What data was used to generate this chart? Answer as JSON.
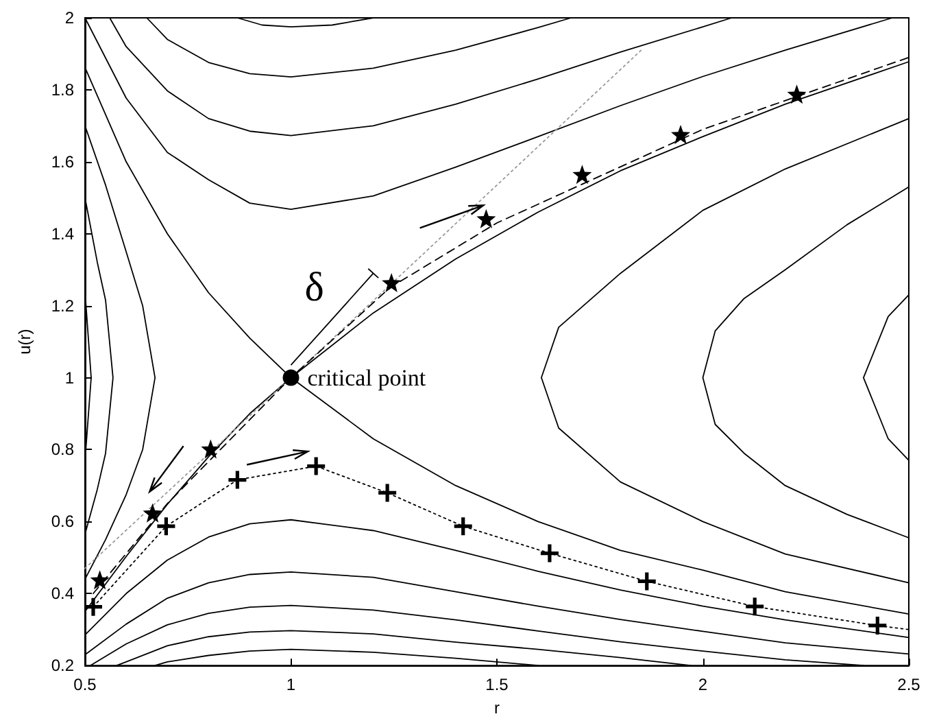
{
  "chart_data": {
    "type": "line",
    "xlabel": "r",
    "ylabel": "u(r)",
    "xlim": [
      0.5,
      2.5
    ],
    "ylim": [
      0.2,
      2
    ],
    "xticks": [
      0.5,
      1,
      1.5,
      2,
      2.5
    ],
    "yticks": [
      0.2,
      0.4,
      0.6,
      0.8,
      1,
      1.2,
      1.4,
      1.6,
      1.8,
      2
    ],
    "grid": false,
    "annotations": [
      {
        "text": "critical point",
        "x": 1,
        "y": 1
      },
      "δ"
    ],
    "series": [
      {
        "color": "#000000",
        "marker": "none",
        "line_style": "solid",
        "x": [
          0.5,
          0.6,
          0.7,
          0.8,
          0.9,
          1,
          1.2,
          1.4,
          1.6,
          1.8,
          2,
          2.2,
          2.5
        ],
        "values": [
          0.35,
          0.503,
          0.648,
          0.78,
          0.9,
          1,
          1.18,
          1.33,
          1.46,
          1.575,
          1.67,
          1.76,
          1.878
        ]
      },
      {
        "color": "#000000",
        "marker": "none",
        "line_style": "solid",
        "x": [
          0.5,
          0.6,
          0.7,
          0.8,
          0.9,
          1,
          1.2,
          1.4,
          1.6,
          1.8,
          2,
          2.2,
          2.5
        ],
        "values": [
          1.862,
          1.6,
          1.4,
          1.236,
          1.11,
          1,
          0.83,
          0.7,
          0.6,
          0.52,
          0.465,
          0.405,
          0.343
        ]
      },
      {
        "color": "#000000",
        "marker": "none",
        "line_style": "solid",
        "x": [
          0.87,
          0.93,
          1,
          1.1,
          1.2
        ],
        "values": [
          2,
          1.98,
          1.975,
          1.98,
          2
        ]
      },
      {
        "color": "#000000",
        "marker": "none",
        "line_style": "solid",
        "x": [
          0.65,
          0.7,
          0.8,
          0.9,
          1,
          1.2,
          1.4,
          1.6,
          1.68
        ],
        "values": [
          2,
          1.94,
          1.876,
          1.845,
          1.836,
          1.86,
          1.91,
          1.973,
          2
        ]
      },
      {
        "color": "#000000",
        "marker": "none",
        "line_style": "solid",
        "x": [
          0.56,
          0.6,
          0.7,
          0.8,
          0.9,
          1,
          1.2,
          1.4,
          1.6,
          1.8,
          2,
          2.07
        ],
        "values": [
          2,
          1.92,
          1.797,
          1.72,
          1.685,
          1.673,
          1.7,
          1.76,
          1.83,
          1.905,
          1.975,
          2
        ]
      },
      {
        "color": "#000000",
        "marker": "none",
        "line_style": "solid",
        "x": [
          0.5,
          0.6,
          0.7,
          0.8,
          0.9,
          1,
          1.2,
          1.4,
          1.6,
          1.8,
          2,
          2.2,
          2.46
        ],
        "values": [
          2,
          1.777,
          1.626,
          1.55,
          1.485,
          1.468,
          1.505,
          1.585,
          1.67,
          1.756,
          1.837,
          1.91,
          2
        ]
      },
      {
        "color": "#000000",
        "marker": "none",
        "line_style": "solid",
        "x": [
          0.5,
          0.55,
          0.6,
          0.64,
          0.67,
          0.64,
          0.6,
          0.55,
          0.5
        ],
        "values": [
          1.7,
          1.535,
          1.35,
          1.2,
          1,
          0.8,
          0.675,
          0.55,
          0.44
        ]
      },
      {
        "color": "#000000",
        "marker": "none",
        "line_style": "solid",
        "x": [
          0.5,
          0.53,
          0.55,
          0.568,
          0.55,
          0.53,
          0.5
        ],
        "values": [
          1.5,
          1.32,
          1.215,
          1,
          0.79,
          0.69,
          0.565
        ]
      },
      {
        "color": "#000000",
        "marker": "none",
        "line_style": "solid",
        "x": [
          0.5,
          0.515,
          0.5
        ],
        "values": [
          1.24,
          1,
          0.77
        ]
      },
      {
        "color": "#000000",
        "marker": "none",
        "line_style": "solid",
        "x": [
          2.5,
          2.2,
          2,
          1.8,
          1.65,
          1.608,
          1.65,
          1.8,
          2,
          2.2,
          2.5
        ],
        "values": [
          1.72,
          1.58,
          1.465,
          1.29,
          1.14,
          1,
          0.86,
          0.71,
          0.6,
          0.51,
          0.43
        ]
      },
      {
        "color": "#000000",
        "marker": "none",
        "line_style": "solid",
        "x": [
          2.5,
          2.35,
          2.2,
          2.1,
          2.03,
          2,
          2.03,
          2.1,
          2.2,
          2.35,
          2.5
        ],
        "values": [
          1.53,
          1.425,
          1.3,
          1.22,
          1.13,
          1,
          0.87,
          0.79,
          0.7,
          0.62,
          0.555
        ]
      },
      {
        "color": "#000000",
        "marker": "none",
        "line_style": "solid",
        "x": [
          2.5,
          2.45,
          2.39,
          2.45,
          2.5
        ],
        "values": [
          1.23,
          1.17,
          1,
          0.83,
          0.77
        ]
      },
      {
        "color": "#000000",
        "marker": "none",
        "line_style": "solid",
        "x": [
          0.5,
          0.6,
          0.7,
          0.8,
          0.9,
          1,
          1.2,
          1.4,
          1.6,
          1.8,
          2,
          2.2,
          2.5
        ],
        "values": [
          0.285,
          0.4,
          0.493,
          0.557,
          0.594,
          0.605,
          0.575,
          0.52,
          0.462,
          0.41,
          0.365,
          0.327,
          0.278
        ]
      },
      {
        "color": "#000000",
        "marker": "none",
        "line_style": "solid",
        "x": [
          0.5,
          0.6,
          0.7,
          0.8,
          0.9,
          1,
          1.2,
          1.4,
          1.6,
          1.8,
          2,
          2.2,
          2.5
        ],
        "values": [
          0.23,
          0.315,
          0.387,
          0.43,
          0.453,
          0.46,
          0.445,
          0.405,
          0.365,
          0.328,
          0.295,
          0.263,
          0.232
        ]
      },
      {
        "color": "#000000",
        "marker": "none",
        "line_style": "solid",
        "x": [
          0.513,
          0.6,
          0.7,
          0.8,
          0.9,
          1,
          1.2,
          1.4,
          1.6,
          1.8,
          2,
          2.2,
          2.39
        ],
        "values": [
          0.2,
          0.26,
          0.313,
          0.345,
          0.362,
          0.367,
          0.354,
          0.327,
          0.296,
          0.266,
          0.24,
          0.216,
          0.2
        ]
      },
      {
        "color": "#000000",
        "marker": "none",
        "line_style": "solid",
        "x": [
          0.577,
          0.6,
          0.7,
          0.8,
          0.9,
          1,
          1.2,
          1.4,
          1.6,
          1.8,
          1.97
        ],
        "values": [
          0.2,
          0.21,
          0.255,
          0.28,
          0.293,
          0.297,
          0.288,
          0.265,
          0.245,
          0.222,
          0.2
        ]
      },
      {
        "color": "#000000",
        "marker": "none",
        "line_style": "solid",
        "x": [
          0.67,
          0.7,
          0.8,
          0.9,
          1,
          1.2,
          1.4,
          1.6
        ],
        "values": [
          0.2,
          0.21,
          0.228,
          0.24,
          0.245,
          0.237,
          0.22,
          0.2
        ]
      },
      {
        "color": "#999999",
        "marker": "none",
        "line_style": "dotted",
        "x": [
          1,
          1.854
        ],
        "values": [
          1,
          1.914
        ]
      },
      {
        "color": "#999999",
        "marker": "none",
        "line_style": "dotted",
        "x": [
          0.5,
          1
        ],
        "values": [
          0.47,
          1
        ]
      },
      {
        "color": "#000000",
        "marker": "none",
        "line_style": "dashed",
        "x": [
          0.52,
          0.7,
          1,
          1.24,
          1.5,
          2,
          2.5
        ],
        "values": [
          0.4,
          0.65,
          1,
          1.25,
          1.43,
          1.69,
          1.89
        ]
      },
      {
        "color": "#000000",
        "marker": "none",
        "line_style": "dotted",
        "x": [
          0.52,
          0.697,
          0.87,
          1.061,
          1.234,
          1.418,
          1.628,
          1.864,
          2.126,
          2.424,
          2.5
        ],
        "values": [
          0.363,
          0.587,
          0.716,
          0.754,
          0.68,
          0.587,
          0.512,
          0.434,
          0.364,
          0.311,
          0.3
        ]
      },
      {
        "type": "scatter",
        "color": "#000000",
        "marker": "star",
        "x": [
          0.536,
          0.664,
          0.805,
          1.244,
          1.474,
          1.707,
          1.946,
          2.228
        ],
        "values": [
          0.438,
          0.624,
          0.802,
          1.264,
          1.442,
          1.565,
          1.676,
          1.788
        ]
      },
      {
        "type": "scatter",
        "color": "#000000",
        "marker": "cross",
        "x": [
          0.52,
          0.697,
          0.87,
          1.061,
          1.234,
          1.418,
          1.628,
          1.864,
          2.126,
          2.424
        ],
        "values": [
          0.363,
          0.587,
          0.716,
          0.754,
          0.68,
          0.587,
          0.512,
          0.434,
          0.364,
          0.311
        ]
      },
      {
        "type": "scatter",
        "color": "#000000",
        "marker": "circle",
        "x": [
          1
        ],
        "values": [
          1
        ]
      }
    ]
  }
}
